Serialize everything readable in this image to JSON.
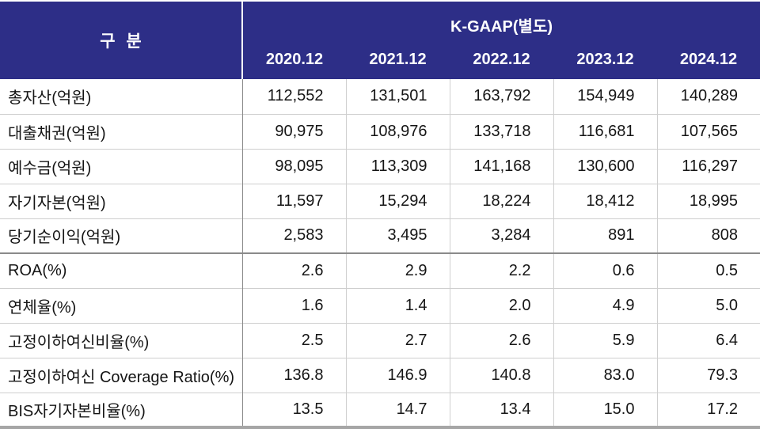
{
  "chart_data": {
    "type": "table",
    "corner_label": "구 분",
    "group_header": "K-GAAP(별도)",
    "columns": [
      "2020.12",
      "2021.12",
      "2022.12",
      "2023.12",
      "2024.12"
    ],
    "rows": [
      {
        "label": "총자산(억원)",
        "values": [
          "112,552",
          "131,501",
          "163,792",
          "154,949",
          "140,289"
        ]
      },
      {
        "label": "대출채권(억원)",
        "values": [
          "90,975",
          "108,976",
          "133,718",
          "116,681",
          "107,565"
        ]
      },
      {
        "label": "예수금(억원)",
        "values": [
          "98,095",
          "113,309",
          "141,168",
          "130,600",
          "116,297"
        ]
      },
      {
        "label": "자기자본(억원)",
        "values": [
          "11,597",
          "15,294",
          "18,224",
          "18,412",
          "18,995"
        ]
      },
      {
        "label": "당기순이익(억원)",
        "values": [
          "2,583",
          "3,495",
          "3,284",
          "891",
          "808"
        ]
      },
      {
        "label": "ROA(%)",
        "values": [
          "2.6",
          "2.9",
          "2.2",
          "0.6",
          "0.5"
        ],
        "section_start": true
      },
      {
        "label": "연체율(%)",
        "values": [
          "1.6",
          "1.4",
          "2.0",
          "4.9",
          "5.0"
        ]
      },
      {
        "label": "고정이하여신비율(%)",
        "values": [
          "2.5",
          "2.7",
          "2.6",
          "5.9",
          "6.4"
        ]
      },
      {
        "label": "고정이하여신 Coverage Ratio(%)",
        "values": [
          "136.8",
          "146.9",
          "140.8",
          "83.0",
          "79.3"
        ]
      },
      {
        "label": "BIS자기자본비율(%)",
        "values": [
          "13.5",
          "14.7",
          "13.4",
          "15.0",
          "17.2"
        ]
      }
    ],
    "colors": {
      "header_bg": "#2d2e87",
      "header_text": "#ffffff",
      "grid_light": "#cfcfcf",
      "grid_dark": "#8a8a8a",
      "bottom_border": "#a6a6a6",
      "body_text": "#151515"
    },
    "layout": {
      "label_column_width": 306,
      "data_column_width": 131,
      "grid": "horizontal-and-vertical",
      "value_alignment": "right"
    }
  }
}
